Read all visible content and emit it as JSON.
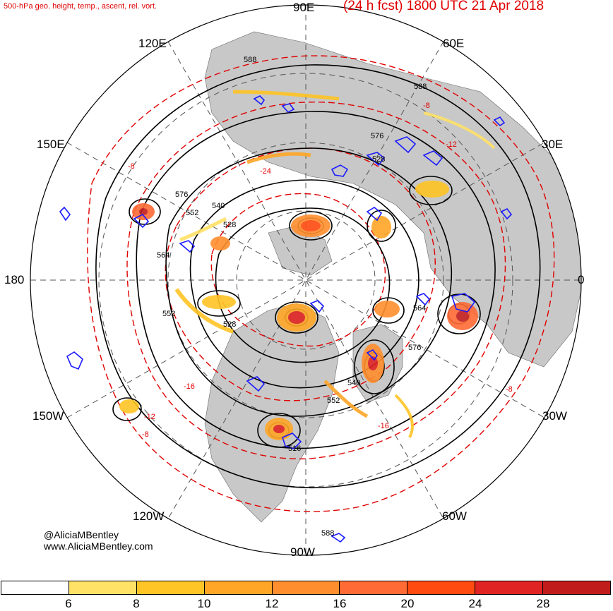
{
  "header": {
    "left_title": "500-hPa geo. height, temp., ascent, rel. vort.",
    "right_title": "(24 h fcst) 1800 UTC 21 Apr 2018"
  },
  "longitude_labels": {
    "lon_90e": "90E",
    "lon_120e": "120E",
    "lon_60e": "60E",
    "lon_150e": "150E",
    "lon_30e": "30E",
    "lon_180": "180",
    "lon_0": "0",
    "lon_150w": "150W",
    "lon_30w": "30W",
    "lon_120w": "120W",
    "lon_60w": "60W",
    "lon_90w": "90W"
  },
  "height_contour_labels": [
    "588",
    "588",
    "576",
    "576",
    "552",
    "540",
    "528",
    "564",
    "552",
    "528",
    "564",
    "576",
    "540",
    "552",
    "588",
    "528",
    "516"
  ],
  "temperature_contour_labels": [
    "-8",
    "-8",
    "-12",
    "-16",
    "-24",
    "-12",
    "-8",
    "-16",
    "-8"
  ],
  "credits": {
    "twitter": "@AliciaMBentley",
    "website": "www.AliciaMBentley.com"
  },
  "colorbar": {
    "colors": [
      "#ffffff",
      "#ffe266",
      "#ffc425",
      "#ffa627",
      "#ff8f2e",
      "#ff6a35",
      "#ff4a10",
      "#e02323",
      "#c01c1c"
    ],
    "ticks": [
      "6",
      "8",
      "10",
      "12",
      "16",
      "20",
      "24",
      "28"
    ]
  },
  "legend_colors": {
    "height_contour": "#000000",
    "temperature_contour": "#e00000",
    "ascent": "#1a1aff",
    "land": "#c8c8c8"
  }
}
